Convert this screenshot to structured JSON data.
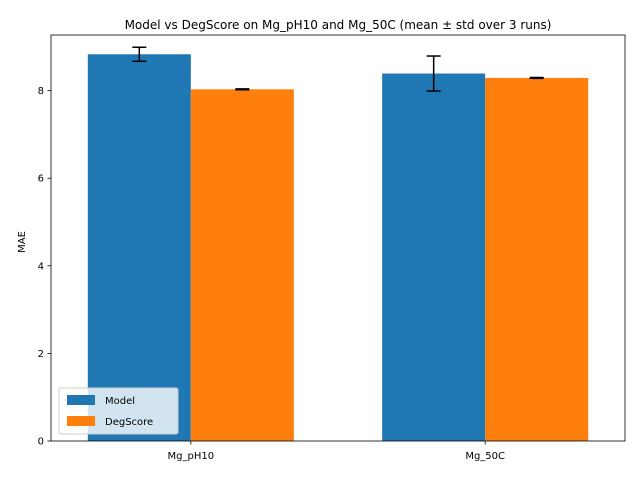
{
  "chart_data": {
    "type": "bar",
    "title": "Model vs DegScore on Mg_pH10 and Mg_50C (mean ± std over 3 runs)",
    "xlabel": "",
    "ylabel": "MAE",
    "categories": [
      "Mg_pH10",
      "Mg_50C"
    ],
    "series": [
      {
        "name": "Model",
        "color": "#1f77b4",
        "values": [
          8.83,
          8.39
        ],
        "errors": [
          0.16,
          0.4
        ]
      },
      {
        "name": "DegScore",
        "color": "#ff7f0e",
        "values": [
          8.03,
          8.29
        ],
        "errors": [
          0.01,
          0.01
        ]
      }
    ],
    "ylim": [
      0,
      9.27
    ],
    "yticks": [
      0,
      2,
      4,
      6,
      8
    ],
    "legend": {
      "placement": "lower-left"
    },
    "grid": false
  }
}
